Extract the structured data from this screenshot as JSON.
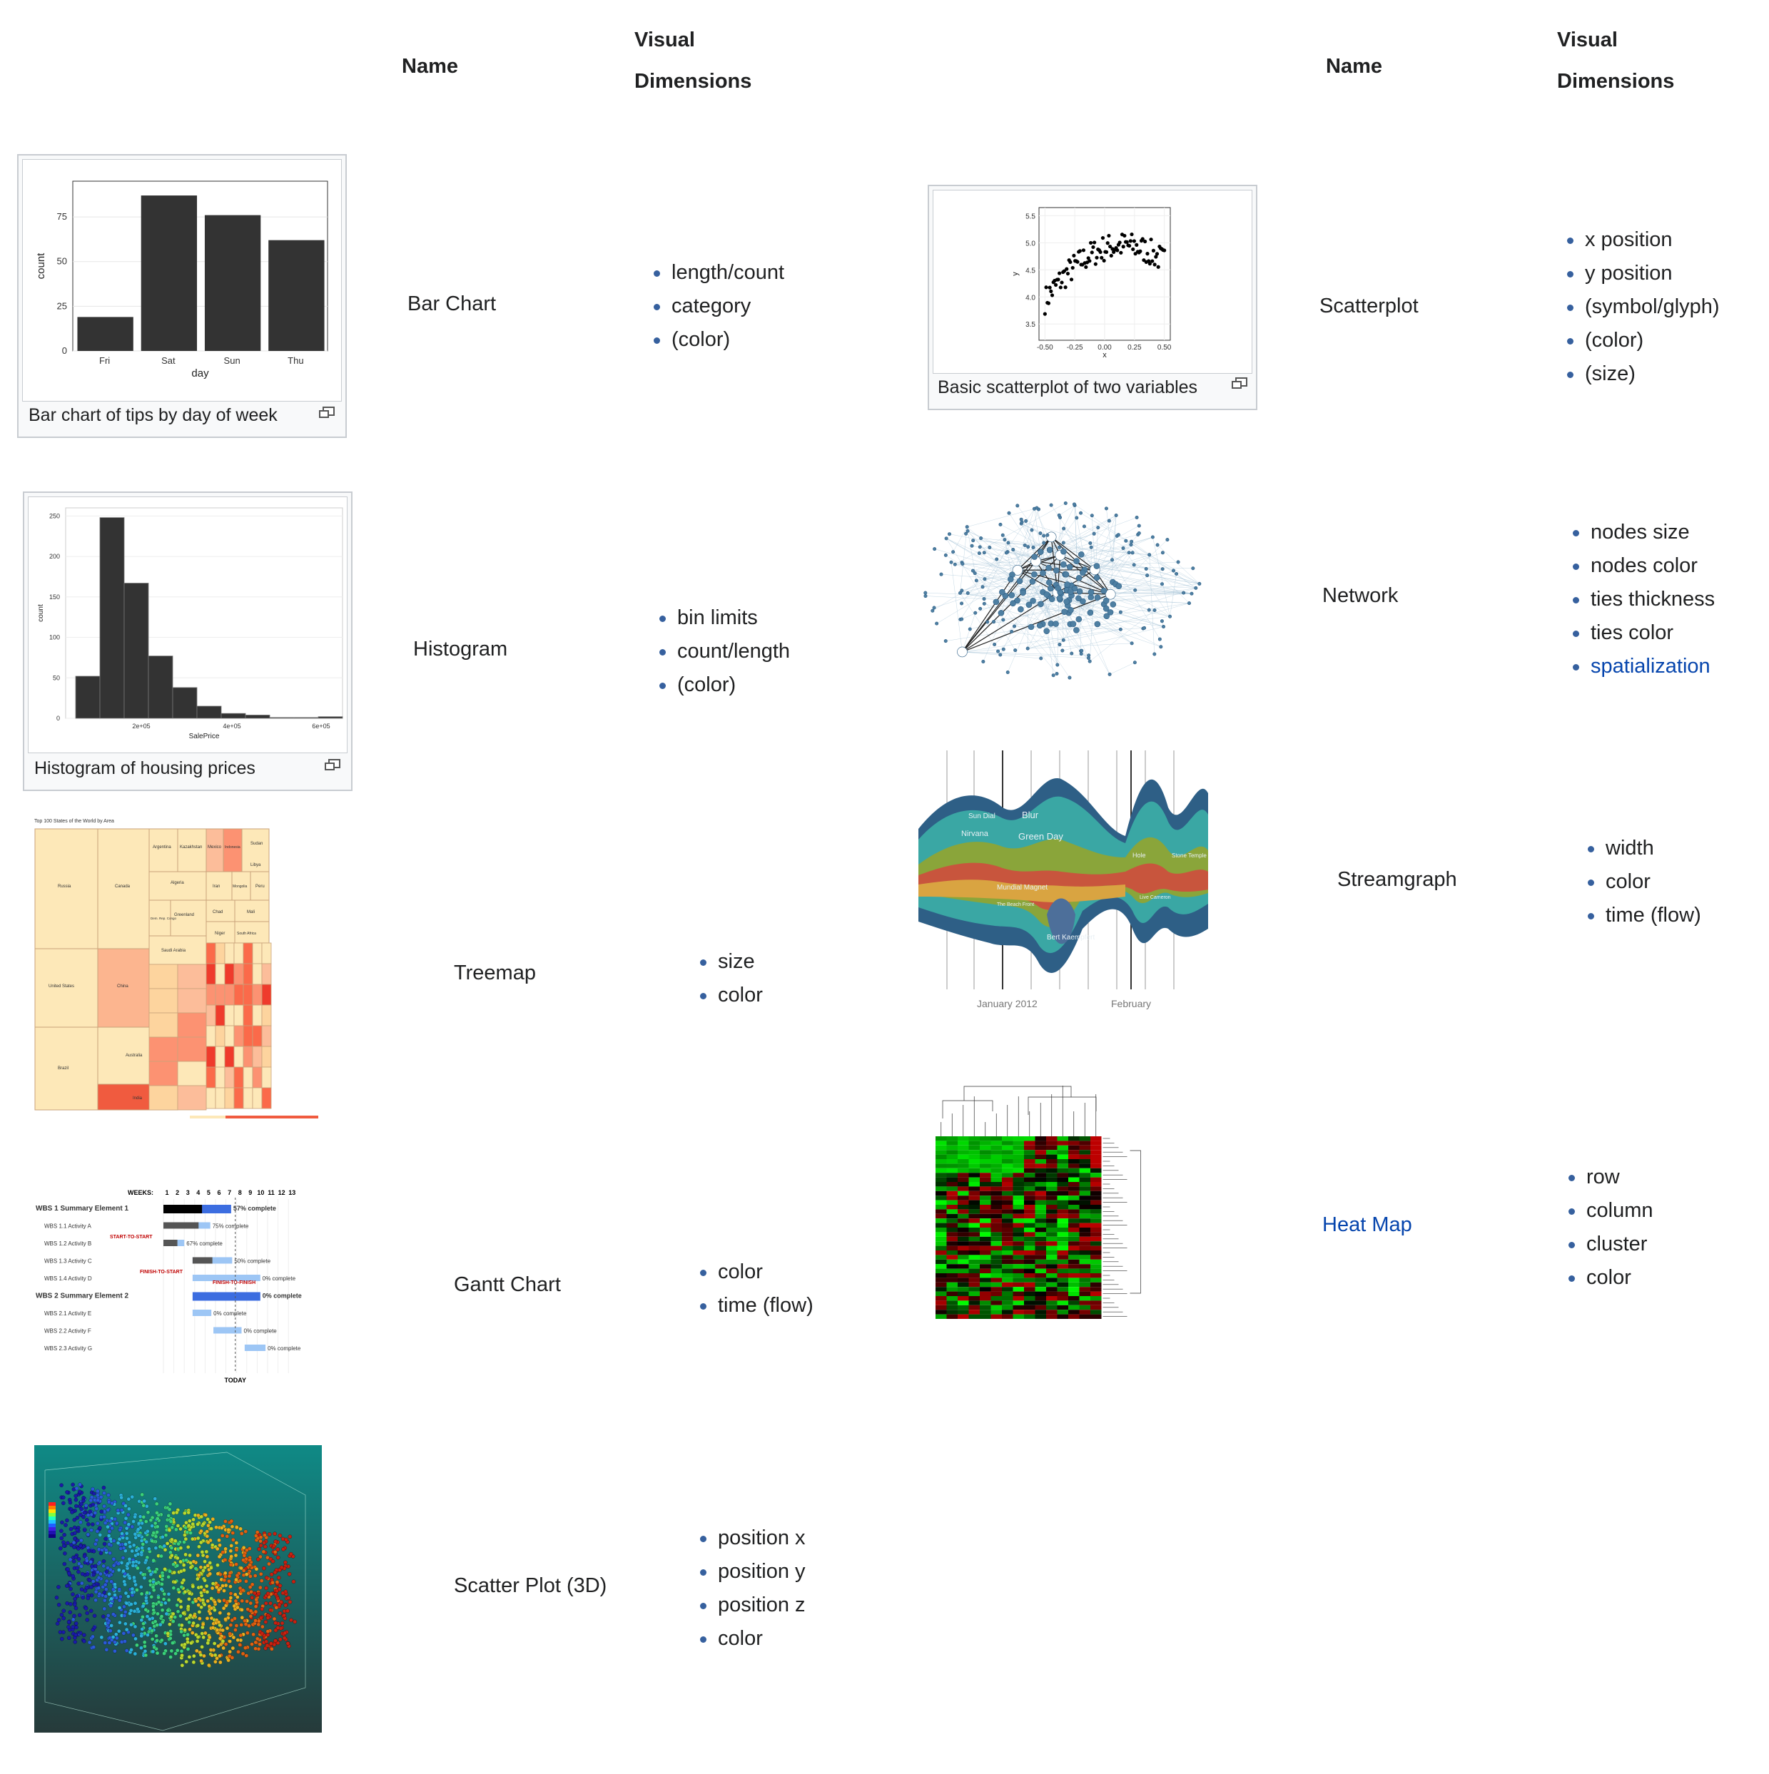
{
  "headers": {
    "name": "Name",
    "visual_line1": "Visual",
    "visual_line2": "Dimensions"
  },
  "rows": [
    {
      "name": "Bar Chart",
      "caption": "Bar chart of tips by day of week",
      "dims": [
        "length/count",
        "category",
        "(color)"
      ],
      "chart": {
        "type": "bar",
        "categories": [
          "Fri",
          "Sat",
          "Sun",
          "Thu"
        ],
        "values": [
          19,
          87,
          76,
          62
        ],
        "xlabel": "day",
        "ylabel": "count",
        "yticks": [
          "0",
          "25",
          "50",
          "75"
        ]
      }
    },
    {
      "name": "Scatterplot",
      "caption": "Basic scatterplot of two variables",
      "dims": [
        "x position",
        "y position",
        "(symbol/glyph)",
        "(color)",
        "(size)"
      ],
      "chart": {
        "type": "scatter",
        "xlabel": "x",
        "ylabel": "y",
        "xticks": [
          "-0.50",
          "-0.25",
          "0.00",
          "0.25",
          "0.50"
        ],
        "yticks": [
          "3.5",
          "4.0",
          "4.5",
          "5.0",
          "5.5"
        ],
        "xlim": [
          -0.55,
          0.55
        ],
        "ylim": [
          3.2,
          5.65
        ]
      }
    },
    {
      "name": "Histogram",
      "caption": "Histogram of housing prices",
      "dims": [
        "bin limits",
        "count/length",
        "(color)"
      ],
      "chart": {
        "type": "bar",
        "values": [
          52,
          248,
          167,
          77,
          38,
          15,
          6,
          4,
          1,
          1,
          2
        ],
        "xlabel": "SalePrice",
        "ylabel": "count",
        "yticks": [
          "0",
          "50",
          "100",
          "150",
          "200",
          "250"
        ],
        "xticks": [
          "2e+05",
          "4e+05",
          "6e+05"
        ]
      }
    },
    {
      "name": "Network",
      "dims": [
        "nodes size",
        "nodes color",
        "ties thickness",
        "ties color",
        "spatialization"
      ]
    },
    {
      "name": "Streamgraph",
      "dims": [
        "width",
        "color",
        "time (flow)"
      ],
      "labels": [
        "Sun Dial",
        "Blur",
        "Nirvana",
        "Green Day",
        "Mundial Magnet",
        "The Beach Front",
        "Bert Kaempfert",
        "Hole",
        "Stone Temple",
        "Live Cameron"
      ],
      "axis": [
        "January 2012",
        "February"
      ]
    },
    {
      "name": "Treemap",
      "dims": [
        "size",
        "color"
      ],
      "title": "Top 100 States of the World by Area",
      "cells": [
        "Russia",
        "Canada",
        "Argentina",
        "Kazakhstan",
        "Mexico",
        "Indonesia",
        "Sudan",
        "Algeria",
        "Iran",
        "Mongolia",
        "Peru",
        "Libya",
        "Greenland",
        "Chad",
        "Mali",
        "Dem. Rep. Congo",
        "Saudi Arabia",
        "Niger",
        "South Africa",
        "United States",
        "China",
        "Brazil",
        "Australia",
        "India"
      ]
    },
    {
      "name": "Heat Map",
      "dims": [
        "row",
        "column",
        "cluster",
        "color"
      ]
    },
    {
      "name": "Gantt Chart",
      "dims": [
        "color",
        "time (flow)"
      ],
      "weeks_label": "WEEKS:",
      "weeks": [
        "1",
        "2",
        "3",
        "4",
        "5",
        "6",
        "7",
        "8",
        "9",
        "10",
        "11",
        "12",
        "13"
      ],
      "tasks": [
        {
          "label": "WBS 1  Summary Element 1",
          "pct": "57% complete"
        },
        {
          "label": "WBS 1.1 Activity A",
          "pct": "75% complete"
        },
        {
          "label": "WBS 1.2 Activity B",
          "pct": "67% complete"
        },
        {
          "label": "WBS 1.3 Activity C",
          "pct": "50% complete"
        },
        {
          "label": "WBS 1.4 Activity D",
          "pct": "0% complete"
        },
        {
          "label": "WBS 2  Summary Element 2",
          "pct": "0% complete"
        },
        {
          "label": "WBS 2.1 Activity E",
          "pct": "0% complete"
        },
        {
          "label": "WBS 2.2 Activity F",
          "pct": "0% complete"
        },
        {
          "label": "WBS 2.3 Activity G",
          "pct": "0% complete"
        }
      ],
      "links": [
        "START-TO-START",
        "FINISH-TO-START",
        "FINISH-TO-FINISH"
      ],
      "today": "TODAY"
    },
    {
      "name": "Scatter Plot (3D)",
      "dims": [
        "position x",
        "position y",
        "position z",
        "color"
      ]
    }
  ],
  "colors": {
    "link": "#0645ad",
    "bullet": "#36609e",
    "bar": "#333333"
  }
}
